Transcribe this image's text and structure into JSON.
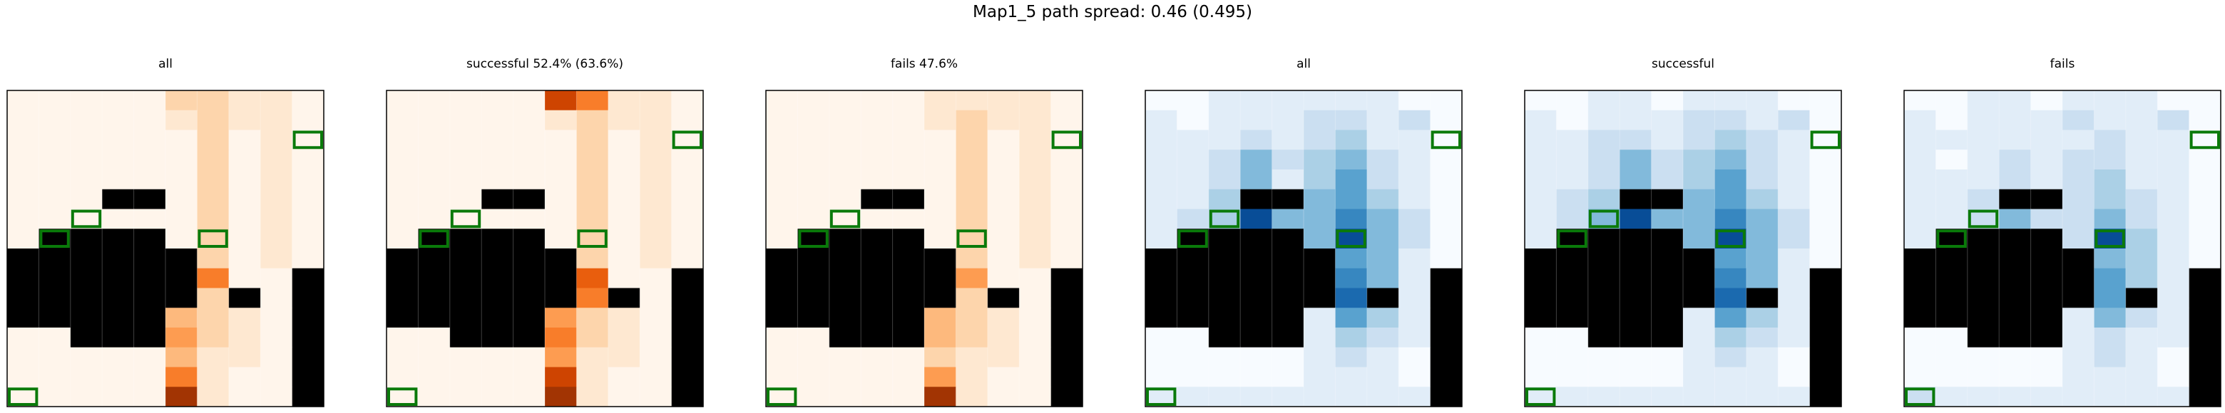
{
  "figure": {
    "suptitle": "Map1_5 path spread: 0.46 (0.495)"
  },
  "chart_data": [
    {
      "type": "heatmap",
      "title": "all",
      "colormap": "Oranges",
      "vmax": 10,
      "values": [
        [
          1,
          1,
          1,
          1,
          1,
          3,
          3,
          2,
          2,
          1
        ],
        [
          1,
          1,
          1,
          1,
          1,
          2,
          3,
          2,
          2,
          1
        ],
        [
          1,
          1,
          1,
          1,
          1,
          1,
          3,
          1,
          2,
          1
        ],
        [
          1,
          1,
          1,
          1,
          1,
          1,
          3,
          1,
          2,
          1
        ],
        [
          1,
          1,
          1,
          1,
          1,
          1,
          3,
          1,
          2,
          1
        ],
        [
          1,
          1,
          1,
          1,
          1,
          1,
          3,
          1,
          2,
          1
        ],
        [
          1,
          1,
          1,
          1,
          1,
          1,
          3,
          1,
          2,
          1
        ],
        [
          1,
          1,
          1,
          1,
          1,
          1,
          3,
          1,
          2,
          1
        ],
        [
          1,
          1,
          1,
          1,
          1,
          3,
          3,
          1,
          2,
          1
        ],
        [
          1,
          1,
          1,
          1,
          1,
          4,
          6,
          1,
          1,
          1
        ],
        [
          1,
          1,
          1,
          1,
          1,
          3,
          3,
          2,
          1,
          1
        ],
        [
          1,
          1,
          1,
          1,
          1,
          4,
          3,
          2,
          1,
          1
        ],
        [
          1,
          1,
          1,
          1,
          1,
          5,
          3,
          2,
          1,
          1
        ],
        [
          1,
          1,
          1,
          1,
          1,
          4,
          2,
          2,
          1,
          1
        ],
        [
          1,
          1,
          1,
          1,
          1,
          6,
          2,
          1,
          1,
          1
        ],
        [
          1,
          1,
          1,
          1,
          1,
          9,
          2,
          1,
          1,
          1
        ]
      ]
    },
    {
      "type": "heatmap",
      "title": "successful 52.4% (63.6%)",
      "colormap": "Oranges",
      "vmax": 10,
      "values": [
        [
          1,
          1,
          1,
          1,
          1,
          8,
          6,
          2,
          2,
          1
        ],
        [
          1,
          1,
          1,
          1,
          1,
          2,
          3,
          2,
          2,
          1
        ],
        [
          1,
          1,
          1,
          1,
          1,
          1,
          3,
          1,
          2,
          1
        ],
        [
          1,
          1,
          1,
          1,
          1,
          1,
          3,
          1,
          2,
          1
        ],
        [
          1,
          1,
          1,
          1,
          1,
          1,
          3,
          1,
          2,
          1
        ],
        [
          1,
          1,
          1,
          1,
          1,
          1,
          3,
          1,
          2,
          1
        ],
        [
          1,
          1,
          1,
          1,
          1,
          1,
          3,
          1,
          2,
          1
        ],
        [
          1,
          1,
          1,
          1,
          1,
          1,
          3,
          1,
          2,
          1
        ],
        [
          1,
          1,
          1,
          1,
          1,
          3,
          3,
          1,
          2,
          1
        ],
        [
          1,
          1,
          1,
          1,
          1,
          4,
          7,
          1,
          1,
          1
        ],
        [
          1,
          1,
          1,
          1,
          1,
          4,
          6,
          2,
          1,
          1
        ],
        [
          1,
          1,
          1,
          1,
          1,
          5,
          3,
          2,
          1,
          1
        ],
        [
          1,
          1,
          1,
          1,
          1,
          6,
          3,
          2,
          1,
          1
        ],
        [
          1,
          1,
          1,
          1,
          1,
          5,
          2,
          2,
          1,
          1
        ],
        [
          1,
          1,
          1,
          1,
          1,
          8,
          2,
          1,
          1,
          1
        ],
        [
          1,
          1,
          1,
          1,
          1,
          9,
          2,
          1,
          1,
          1
        ]
      ]
    },
    {
      "type": "heatmap",
      "title": "fails 47.6%",
      "colormap": "Oranges",
      "vmax": 10,
      "values": [
        [
          1,
          1,
          1,
          1,
          1,
          2,
          2,
          2,
          2,
          1
        ],
        [
          1,
          1,
          1,
          1,
          1,
          2,
          3,
          2,
          2,
          1
        ],
        [
          1,
          1,
          1,
          1,
          1,
          1,
          3,
          1,
          2,
          1
        ],
        [
          1,
          1,
          1,
          1,
          1,
          1,
          3,
          1,
          2,
          1
        ],
        [
          1,
          1,
          1,
          1,
          1,
          1,
          3,
          1,
          2,
          1
        ],
        [
          1,
          1,
          1,
          1,
          1,
          1,
          3,
          1,
          2,
          1
        ],
        [
          1,
          1,
          1,
          1,
          1,
          1,
          3,
          1,
          2,
          1
        ],
        [
          1,
          1,
          1,
          1,
          1,
          1,
          3,
          1,
          2,
          1
        ],
        [
          1,
          1,
          1,
          1,
          1,
          3,
          3,
          1,
          2,
          1
        ],
        [
          1,
          1,
          1,
          1,
          1,
          4,
          5,
          1,
          1,
          1
        ],
        [
          1,
          1,
          1,
          1,
          1,
          3,
          3,
          2,
          1,
          1
        ],
        [
          1,
          1,
          1,
          1,
          1,
          4,
          3,
          2,
          1,
          1
        ],
        [
          1,
          1,
          1,
          1,
          1,
          4,
          3,
          2,
          1,
          1
        ],
        [
          1,
          1,
          1,
          1,
          1,
          3,
          2,
          2,
          1,
          1
        ],
        [
          1,
          1,
          1,
          1,
          1,
          5,
          2,
          1,
          1,
          1
        ],
        [
          1,
          1,
          1,
          1,
          1,
          9,
          2,
          1,
          1,
          1
        ]
      ]
    },
    {
      "type": "heatmap",
      "title": "all",
      "colormap": "Blues",
      "vmax": 10,
      "values": [
        [
          1,
          1,
          2,
          2,
          2,
          2,
          2,
          2,
          1,
          1
        ],
        [
          2,
          1,
          2,
          2,
          2,
          3,
          3,
          2,
          3,
          1
        ],
        [
          2,
          2,
          2,
          3,
          2,
          3,
          4,
          2,
          2,
          1
        ],
        [
          2,
          2,
          3,
          5,
          3,
          4,
          5,
          3,
          2,
          1
        ],
        [
          2,
          2,
          3,
          5,
          2,
          4,
          6,
          3,
          2,
          1
        ],
        [
          2,
          2,
          4,
          6,
          4,
          5,
          6,
          4,
          2,
          1
        ],
        [
          2,
          3,
          4,
          9,
          5,
          5,
          7,
          5,
          3,
          1
        ],
        [
          2,
          3,
          4,
          5,
          4,
          5,
          9,
          5,
          3,
          1
        ],
        [
          1,
          1,
          1,
          1,
          1,
          1,
          6,
          5,
          2,
          1
        ],
        [
          1,
          1,
          1,
          1,
          1,
          2,
          7,
          5,
          2,
          1
        ],
        [
          1,
          1,
          1,
          1,
          1,
          2,
          8,
          6,
          2,
          1
        ],
        [
          1,
          1,
          1,
          1,
          1,
          2,
          6,
          4,
          2,
          1
        ],
        [
          1,
          1,
          1,
          1,
          1,
          2,
          4,
          3,
          2,
          1
        ],
        [
          1,
          1,
          1,
          1,
          1,
          2,
          3,
          2,
          1,
          1
        ],
        [
          1,
          1,
          1,
          1,
          1,
          2,
          2,
          2,
          1,
          1
        ],
        [
          2,
          2,
          2,
          2,
          2,
          2,
          2,
          2,
          2,
          2
        ]
      ]
    },
    {
      "type": "heatmap",
      "title": "successful",
      "colormap": "Blues",
      "vmax": 10,
      "values": [
        [
          1,
          1,
          2,
          2,
          1,
          2,
          2,
          2,
          1,
          1
        ],
        [
          2,
          1,
          2,
          2,
          2,
          3,
          3,
          2,
          3,
          1
        ],
        [
          2,
          2,
          3,
          3,
          2,
          3,
          4,
          3,
          2,
          1
        ],
        [
          2,
          2,
          3,
          5,
          3,
          4,
          5,
          3,
          2,
          1
        ],
        [
          2,
          2,
          3,
          5,
          3,
          4,
          6,
          3,
          2,
          1
        ],
        [
          2,
          3,
          4,
          6,
          4,
          5,
          6,
          4,
          2,
          1
        ],
        [
          2,
          3,
          5,
          9,
          5,
          5,
          7,
          5,
          3,
          1
        ],
        [
          2,
          3,
          5,
          5,
          4,
          5,
          9,
          5,
          3,
          1
        ],
        [
          1,
          1,
          1,
          1,
          1,
          1,
          6,
          5,
          2,
          1
        ],
        [
          1,
          1,
          1,
          1,
          1,
          2,
          7,
          5,
          2,
          1
        ],
        [
          1,
          1,
          1,
          1,
          1,
          2,
          8,
          6,
          2,
          1
        ],
        [
          1,
          1,
          1,
          1,
          1,
          2,
          6,
          4,
          2,
          1
        ],
        [
          1,
          1,
          1,
          1,
          1,
          2,
          4,
          3,
          2,
          1
        ],
        [
          1,
          1,
          1,
          1,
          1,
          2,
          3,
          2,
          1,
          1
        ],
        [
          1,
          1,
          1,
          1,
          1,
          2,
          2,
          2,
          1,
          1
        ],
        [
          2,
          2,
          2,
          2,
          2,
          2,
          2,
          2,
          2,
          2
        ]
      ]
    },
    {
      "type": "heatmap",
      "title": "fails",
      "colormap": "Blues",
      "vmax": 10,
      "values": [
        [
          1,
          1,
          2,
          2,
          1,
          2,
          2,
          2,
          1,
          1
        ],
        [
          2,
          1,
          2,
          2,
          2,
          3,
          2,
          2,
          3,
          1
        ],
        [
          2,
          2,
          2,
          2,
          2,
          2,
          3,
          2,
          2,
          1
        ],
        [
          2,
          1,
          2,
          3,
          2,
          3,
          3,
          2,
          2,
          1
        ],
        [
          2,
          2,
          2,
          3,
          2,
          3,
          4,
          2,
          2,
          1
        ],
        [
          2,
          2,
          3,
          3,
          3,
          3,
          4,
          3,
          2,
          1
        ],
        [
          2,
          2,
          3,
          5,
          3,
          3,
          5,
          3,
          2,
          1
        ],
        [
          2,
          2,
          3,
          4,
          3,
          3,
          9,
          4,
          2,
          1
        ],
        [
          1,
          1,
          1,
          1,
          1,
          1,
          5,
          4,
          2,
          1
        ],
        [
          1,
          1,
          1,
          1,
          1,
          2,
          6,
          4,
          2,
          1
        ],
        [
          1,
          1,
          1,
          1,
          1,
          2,
          6,
          4,
          2,
          1
        ],
        [
          1,
          1,
          1,
          1,
          1,
          2,
          5,
          3,
          2,
          1
        ],
        [
          1,
          1,
          1,
          1,
          1,
          2,
          3,
          2,
          2,
          1
        ],
        [
          1,
          1,
          1,
          1,
          1,
          2,
          3,
          2,
          1,
          1
        ],
        [
          1,
          1,
          1,
          1,
          1,
          2,
          2,
          2,
          1,
          1
        ],
        [
          3,
          2,
          2,
          2,
          2,
          2,
          2,
          2,
          2,
          2
        ]
      ]
    }
  ],
  "maze_grid": {
    "columns": 10,
    "rows": 16,
    "walls": [
      [
        3,
        5
      ],
      [
        4,
        5
      ],
      [
        1,
        7
      ],
      [
        2,
        7
      ],
      [
        3,
        7
      ],
      [
        4,
        7
      ],
      [
        0,
        8
      ],
      [
        1,
        8
      ],
      [
        2,
        8
      ],
      [
        3,
        8
      ],
      [
        4,
        8
      ],
      [
        5,
        8
      ],
      [
        0,
        9
      ],
      [
        1,
        9
      ],
      [
        2,
        9
      ],
      [
        3,
        9
      ],
      [
        4,
        9
      ],
      [
        5,
        9
      ],
      [
        0,
        10
      ],
      [
        1,
        10
      ],
      [
        2,
        10
      ],
      [
        3,
        10
      ],
      [
        4,
        10
      ],
      [
        5,
        10
      ],
      [
        0,
        11
      ],
      [
        1,
        11
      ],
      [
        2,
        11
      ],
      [
        3,
        11
      ],
      [
        4,
        11
      ],
      [
        2,
        12
      ],
      [
        3,
        12
      ],
      [
        4,
        12
      ],
      [
        9,
        9
      ],
      [
        9,
        10
      ],
      [
        9,
        11
      ],
      [
        9,
        12
      ],
      [
        9,
        13
      ],
      [
        9,
        14
      ],
      [
        9,
        15
      ],
      [
        7,
        10
      ]
    ],
    "wall_color": "#000000",
    "markers": [
      [
        9,
        2
      ],
      [
        2,
        6
      ],
      [
        1,
        7
      ],
      [
        6,
        7
      ],
      [
        0,
        15
      ]
    ],
    "marker_color": "#0a7a0a"
  },
  "colors": {
    "oranges_low": "#fff5eb",
    "oranges_high": "#7f2704",
    "blues_low": "#f7fbff",
    "blues_high": "#08306b"
  }
}
